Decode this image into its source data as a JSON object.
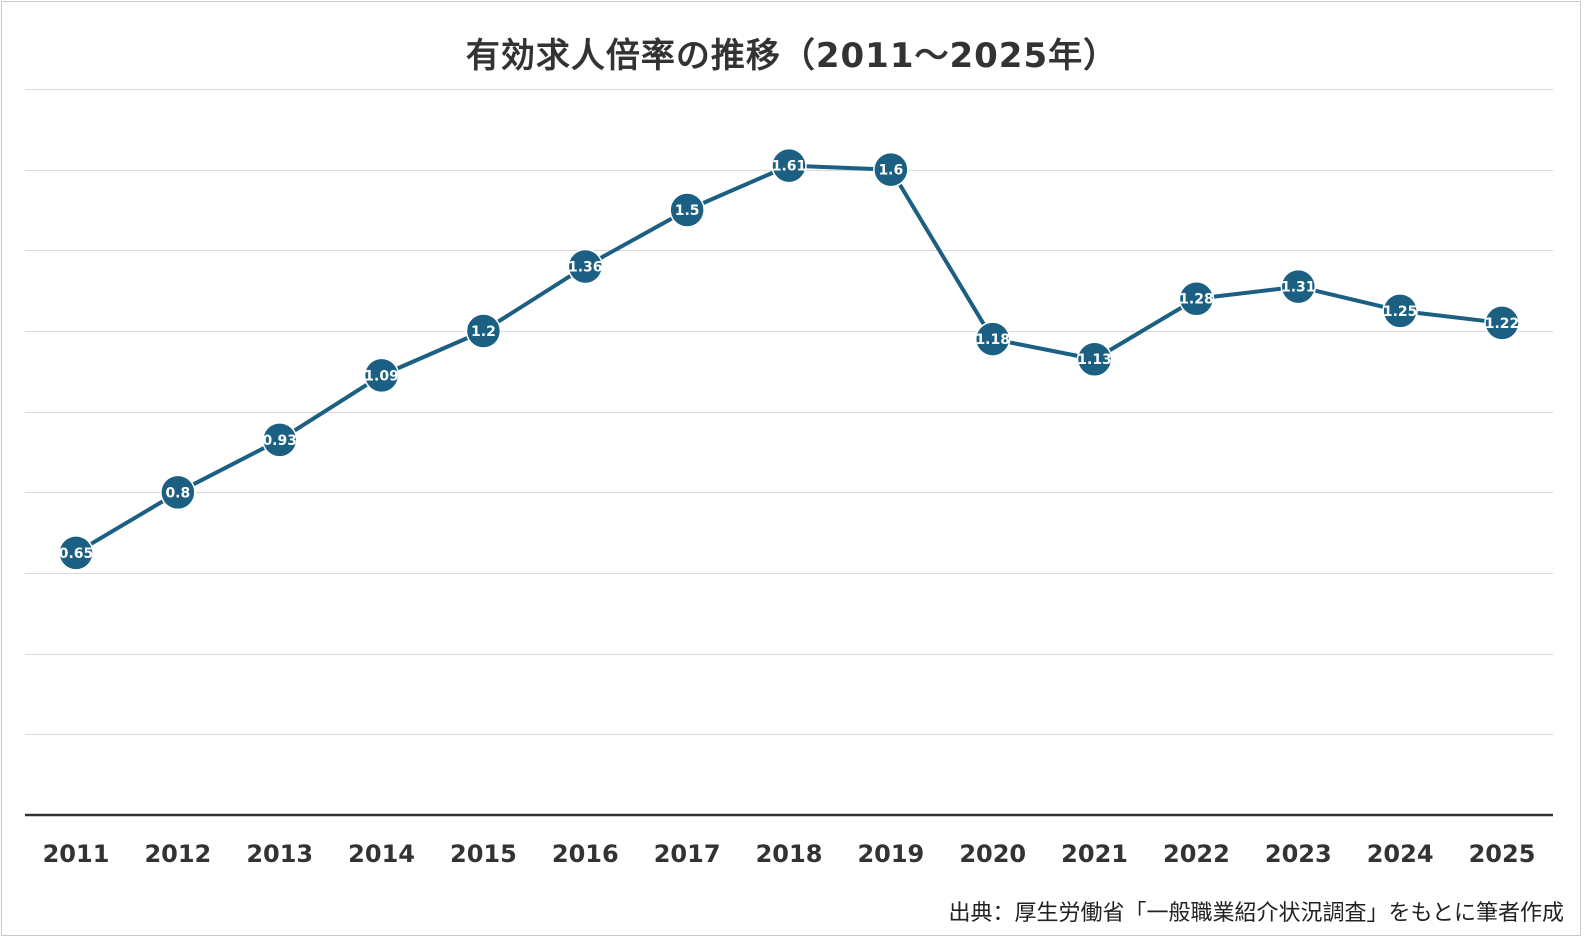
{
  "chart_data": {
    "type": "line",
    "title": "有効求人倍率の推移（2011〜2025年）",
    "categories": [
      "2011",
      "2012",
      "2013",
      "2014",
      "2015",
      "2016",
      "2017",
      "2018",
      "2019",
      "2020",
      "2021",
      "2022",
      "2023",
      "2024",
      "2025"
    ],
    "values": [
      0.65,
      0.8,
      0.93,
      1.09,
      1.2,
      1.36,
      1.5,
      1.61,
      1.6,
      1.18,
      1.13,
      1.28,
      1.31,
      1.25,
      1.22
    ],
    "ylim": [
      0,
      1.8
    ],
    "grid": true,
    "color": "#1b5f82"
  },
  "source": "出典：厚生労働省「一般職業紹介状況調査」をもとに筆者作成"
}
